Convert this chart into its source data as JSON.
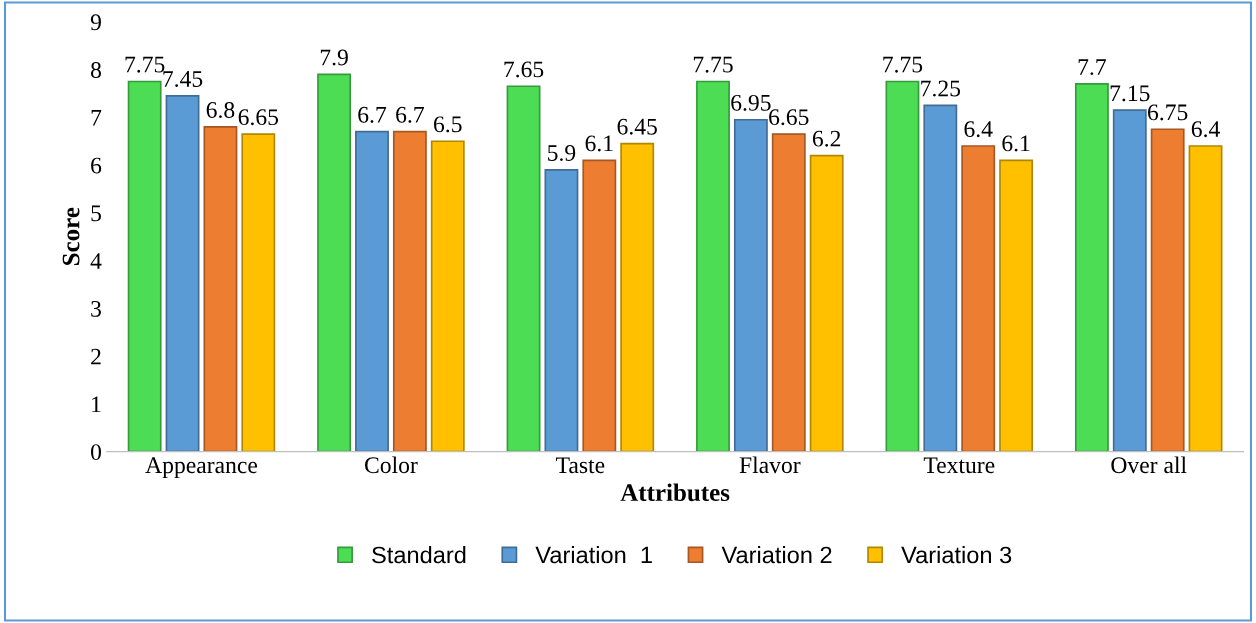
{
  "chart_data": {
    "type": "bar",
    "xlabel": "Attributes",
    "ylabel": "Score",
    "categories": [
      "Appearance",
      "Color",
      "Taste",
      "Flavor",
      "Texture",
      "Over all"
    ],
    "series": [
      {
        "name": "Standard",
        "color": "#4cdd55",
        "values": [
          7.75,
          7.9,
          7.65,
          7.75,
          7.75,
          7.7
        ]
      },
      {
        "name": "Variation  1",
        "color": "#5b9bd5",
        "values": [
          7.45,
          6.7,
          5.9,
          6.95,
          7.25,
          7.15
        ]
      },
      {
        "name": "Variation 2",
        "color": "#ed7d31",
        "values": [
          6.8,
          6.7,
          6.1,
          6.65,
          6.4,
          6.75
        ]
      },
      {
        "name": "Variation 3",
        "color": "#ffc000",
        "values": [
          6.65,
          6.5,
          6.45,
          6.2,
          6.1,
          6.4
        ]
      }
    ],
    "ylim": [
      0,
      9
    ],
    "yticks": [
      0,
      1,
      2,
      3,
      4,
      5,
      6,
      7,
      8,
      9
    ],
    "data_labels": true,
    "legend": "bottom",
    "grid": false
  }
}
